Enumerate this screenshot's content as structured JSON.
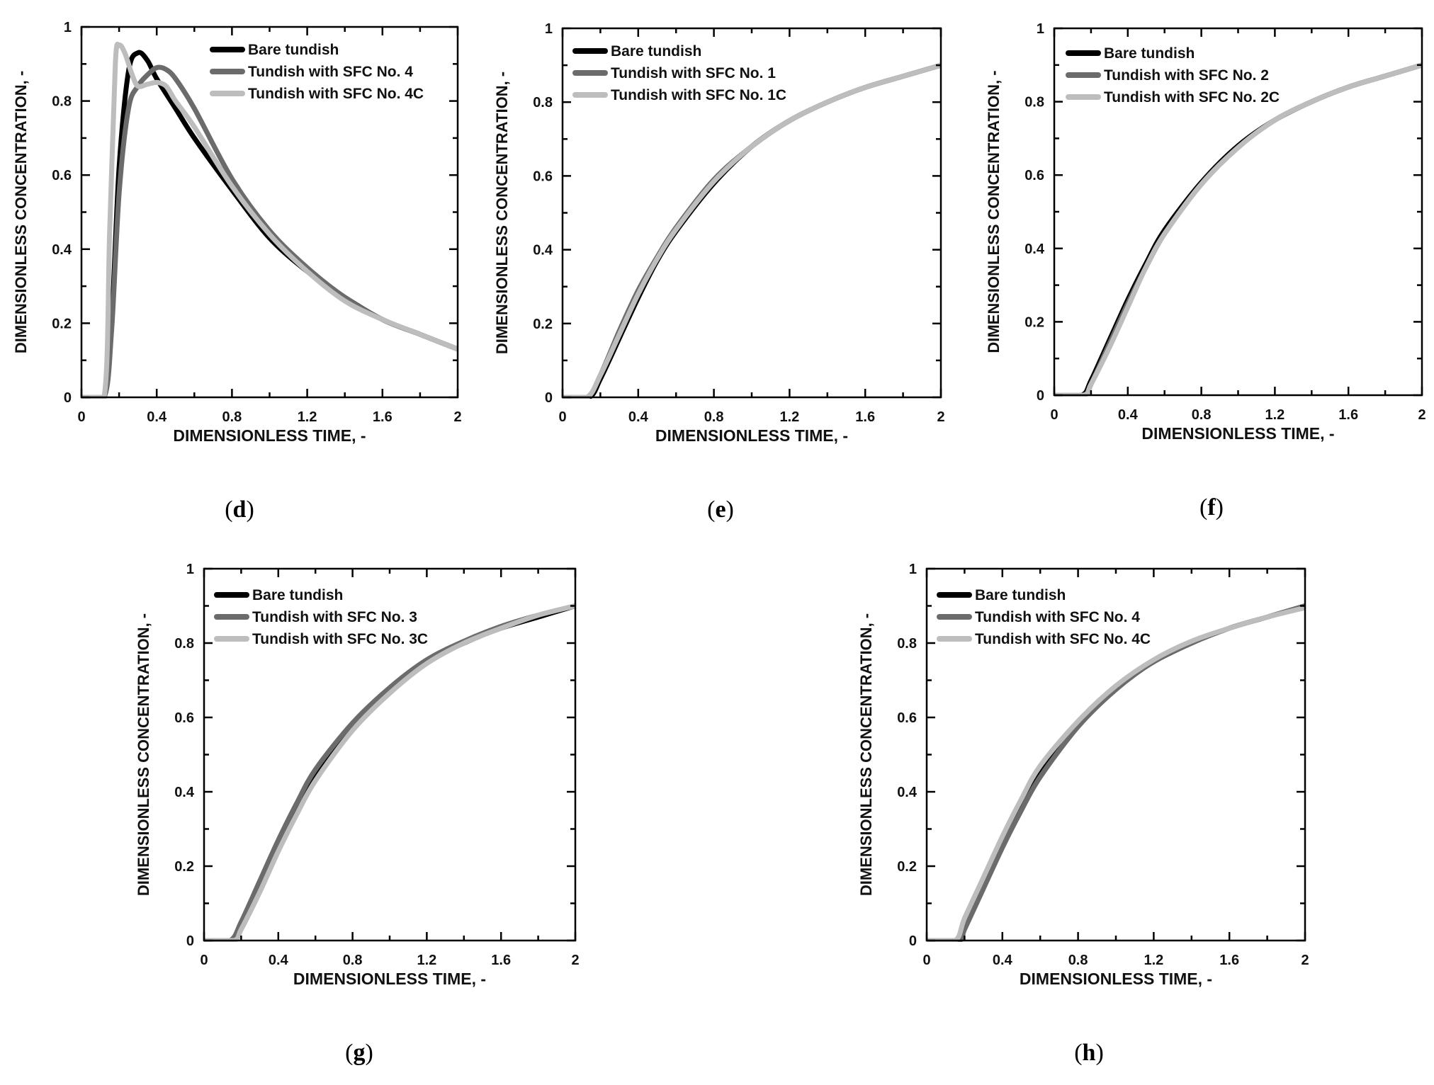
{
  "colors": {
    "bare": "#000000",
    "sfc": "#6b6b6b",
    "sfcC": "#bdbdbd"
  },
  "chart_data": [
    {
      "panel": "(d)",
      "type": "line",
      "xlabel": "DIMENSIONLESS TIME, -",
      "ylabel": "DIMENSIONLESS CONCENTRATION, -",
      "xlim": [
        0,
        2
      ],
      "ylim": [
        0,
        1
      ],
      "xticks": [
        "0",
        "0.4",
        "0.8",
        "1.2",
        "1.6",
        "2"
      ],
      "yticks": [
        "0",
        "0.2",
        "0.4",
        "0.6",
        "0.8",
        "1"
      ],
      "legend_position": "top-right",
      "series": [
        {
          "name": "Bare tundish",
          "x": [
            0,
            0.12,
            0.16,
            0.2,
            0.25,
            0.3,
            0.35,
            0.4,
            0.5,
            0.6,
            0.8,
            1.0,
            1.2,
            1.4,
            1.6,
            1.8,
            2.0
          ],
          "y": [
            0,
            0,
            0.2,
            0.62,
            0.88,
            0.93,
            0.91,
            0.86,
            0.78,
            0.7,
            0.56,
            0.43,
            0.34,
            0.27,
            0.21,
            0.17,
            0.13
          ]
        },
        {
          "name": "Tundish with SFC No. 4",
          "x": [
            0,
            0.12,
            0.16,
            0.2,
            0.25,
            0.3,
            0.35,
            0.4,
            0.45,
            0.5,
            0.6,
            0.8,
            1.0,
            1.2,
            1.4,
            1.6,
            1.8,
            2.0
          ],
          "y": [
            0,
            0,
            0.18,
            0.55,
            0.78,
            0.84,
            0.87,
            0.89,
            0.885,
            0.86,
            0.78,
            0.59,
            0.45,
            0.35,
            0.27,
            0.21,
            0.17,
            0.13
          ]
        },
        {
          "name": "Tundish with SFC No. 4C",
          "x": [
            0,
            0.12,
            0.15,
            0.18,
            0.2,
            0.23,
            0.27,
            0.3,
            0.35,
            0.4,
            0.45,
            0.5,
            0.6,
            0.8,
            1.0,
            1.2,
            1.4,
            1.6,
            1.8,
            2.0
          ],
          "y": [
            0,
            0,
            0.45,
            0.9,
            0.95,
            0.93,
            0.87,
            0.84,
            0.845,
            0.85,
            0.84,
            0.8,
            0.73,
            0.57,
            0.44,
            0.34,
            0.26,
            0.21,
            0.17,
            0.13
          ]
        }
      ],
      "legend": [
        "Bare tundish",
        "Tundish with SFC No. 4",
        "Tundish with SFC No. 4C"
      ]
    },
    {
      "panel": "(e)",
      "type": "line",
      "xlabel": "DIMENSIONLESS TIME, -",
      "ylabel": "DIMENSIONLESS CONCENTRATION, -",
      "xlim": [
        0,
        2
      ],
      "ylim": [
        0,
        1
      ],
      "xticks": [
        "0",
        "0.4",
        "0.8",
        "1.2",
        "1.6",
        "2"
      ],
      "yticks": [
        "0",
        "0.2",
        "0.4",
        "0.6",
        "0.8",
        "1"
      ],
      "legend_position": "top-left",
      "series": [
        {
          "name": "Bare tundish",
          "x": [
            0,
            0.14,
            0.2,
            0.3,
            0.4,
            0.5,
            0.6,
            0.8,
            1.0,
            1.2,
            1.4,
            1.6,
            1.8,
            2.0
          ],
          "y": [
            0,
            0,
            0.05,
            0.16,
            0.27,
            0.37,
            0.45,
            0.58,
            0.68,
            0.75,
            0.8,
            0.84,
            0.87,
            0.9
          ]
        },
        {
          "name": "Tundish with SFC No. 1",
          "x": [
            0,
            0.13,
            0.2,
            0.3,
            0.4,
            0.5,
            0.6,
            0.8,
            1.0,
            1.2,
            1.4,
            1.6,
            1.8,
            2.0
          ],
          "y": [
            0,
            0,
            0.06,
            0.18,
            0.29,
            0.38,
            0.46,
            0.59,
            0.68,
            0.75,
            0.8,
            0.84,
            0.87,
            0.9
          ]
        },
        {
          "name": "Tundish with SFC No. 1C",
          "x": [
            0,
            0.13,
            0.2,
            0.3,
            0.4,
            0.5,
            0.6,
            0.8,
            1.0,
            1.2,
            1.4,
            1.6,
            1.8,
            2.0
          ],
          "y": [
            0,
            0,
            0.06,
            0.17,
            0.28,
            0.375,
            0.455,
            0.585,
            0.68,
            0.75,
            0.8,
            0.84,
            0.87,
            0.9
          ]
        }
      ],
      "legend": [
        "Bare tundish",
        "Tundish with SFC No. 1",
        "Tundish with SFC No. 1C"
      ]
    },
    {
      "panel": "(f)",
      "type": "line",
      "xlabel": "DIMENSIONLESS TIME, -",
      "ylabel": "DIMENSIONLESS CONCENTRATION, -",
      "xlim": [
        0,
        2
      ],
      "ylim": [
        0,
        1
      ],
      "xticks": [
        "0",
        "0.4",
        "0.8",
        "1.2",
        "1.6",
        "2"
      ],
      "yticks": [
        "0",
        "0.2",
        "0.4",
        "0.6",
        "0.8",
        "1"
      ],
      "legend_position": "top-left",
      "series": [
        {
          "name": "Bare tundish",
          "x": [
            0,
            0.15,
            0.2,
            0.3,
            0.4,
            0.5,
            0.6,
            0.8,
            1.0,
            1.2,
            1.4,
            1.6,
            1.8,
            2.0
          ],
          "y": [
            0,
            0,
            0.04,
            0.15,
            0.26,
            0.36,
            0.45,
            0.58,
            0.68,
            0.75,
            0.8,
            0.84,
            0.87,
            0.9
          ]
        },
        {
          "name": "Tundish with SFC No. 2",
          "x": [
            0,
            0.16,
            0.2,
            0.3,
            0.4,
            0.5,
            0.6,
            0.8,
            1.0,
            1.2,
            1.4,
            1.6,
            1.8,
            2.0
          ],
          "y": [
            0,
            0,
            0.03,
            0.14,
            0.25,
            0.35,
            0.44,
            0.575,
            0.675,
            0.75,
            0.8,
            0.84,
            0.87,
            0.9
          ]
        },
        {
          "name": "Tundish with SFC No. 2C",
          "x": [
            0,
            0.16,
            0.2,
            0.3,
            0.4,
            0.5,
            0.6,
            0.8,
            1.0,
            1.2,
            1.4,
            1.6,
            1.8,
            2.0
          ],
          "y": [
            0,
            0,
            0.03,
            0.13,
            0.24,
            0.35,
            0.44,
            0.575,
            0.675,
            0.75,
            0.8,
            0.84,
            0.87,
            0.9
          ]
        }
      ],
      "legend": [
        "Bare tundish",
        "Tundish with SFC No. 2",
        "Tundish with SFC No. 2C"
      ]
    },
    {
      "panel": "(g)",
      "type": "line",
      "xlabel": "DIMENSIONLESS TIME, -",
      "ylabel": "DIMENSIONLESS CONCENTRATION, -",
      "xlim": [
        0,
        2
      ],
      "ylim": [
        0,
        1
      ],
      "xticks": [
        "0",
        "0.4",
        "0.8",
        "1.2",
        "1.6",
        "2"
      ],
      "yticks": [
        "0",
        "0.2",
        "0.4",
        "0.6",
        "0.8",
        "1"
      ],
      "legend_position": "top-left",
      "series": [
        {
          "name": "Bare tundish",
          "x": [
            0,
            0.15,
            0.2,
            0.3,
            0.4,
            0.5,
            0.6,
            0.8,
            1.0,
            1.2,
            1.4,
            1.6,
            1.8,
            2.0
          ],
          "y": [
            0,
            0,
            0.04,
            0.14,
            0.25,
            0.35,
            0.44,
            0.57,
            0.67,
            0.75,
            0.8,
            0.84,
            0.87,
            0.9
          ]
        },
        {
          "name": "Tundish with SFC No. 3",
          "x": [
            0,
            0.14,
            0.2,
            0.3,
            0.4,
            0.5,
            0.6,
            0.8,
            1.0,
            1.2,
            1.4,
            1.6,
            1.8,
            2.0
          ],
          "y": [
            0,
            0,
            0.05,
            0.16,
            0.27,
            0.37,
            0.46,
            0.585,
            0.68,
            0.755,
            0.805,
            0.845,
            0.875,
            0.9
          ]
        },
        {
          "name": "Tundish with SFC No. 3C",
          "x": [
            0,
            0.16,
            0.2,
            0.3,
            0.4,
            0.5,
            0.6,
            0.8,
            1.0,
            1.2,
            1.4,
            1.6,
            1.8,
            2.0
          ],
          "y": [
            0,
            0,
            0.03,
            0.13,
            0.24,
            0.34,
            0.43,
            0.565,
            0.665,
            0.745,
            0.8,
            0.84,
            0.875,
            0.9
          ]
        }
      ],
      "legend": [
        "Bare tundish",
        "Tundish with SFC No. 3",
        "Tundish with SFC No. 3C"
      ]
    },
    {
      "panel": "(h)",
      "type": "line",
      "xlabel": "DIMENSIONLESS TIME, -",
      "ylabel": "DIMENSIONLESS CONCENTRATION, -",
      "xlim": [
        0,
        2
      ],
      "ylim": [
        0,
        1
      ],
      "xticks": [
        "0",
        "0.4",
        "0.8",
        "1.2",
        "1.6",
        "2"
      ],
      "yticks": [
        "0",
        "0.2",
        "0.4",
        "0.6",
        "0.8",
        "1"
      ],
      "legend_position": "top-left",
      "series": [
        {
          "name": "Bare tundish",
          "x": [
            0,
            0.16,
            0.2,
            0.3,
            0.4,
            0.5,
            0.6,
            0.8,
            1.0,
            1.2,
            1.4,
            1.6,
            1.8,
            2.0
          ],
          "y": [
            0,
            0,
            0.04,
            0.15,
            0.26,
            0.36,
            0.45,
            0.58,
            0.68,
            0.75,
            0.8,
            0.84,
            0.87,
            0.9
          ]
        },
        {
          "name": "Tundish with SFC No. 4",
          "x": [
            0,
            0.17,
            0.2,
            0.3,
            0.4,
            0.5,
            0.6,
            0.8,
            1.0,
            1.2,
            1.4,
            1.6,
            1.8,
            2.0
          ],
          "y": [
            0,
            0,
            0.03,
            0.14,
            0.25,
            0.35,
            0.44,
            0.575,
            0.675,
            0.75,
            0.8,
            0.84,
            0.87,
            0.9
          ]
        },
        {
          "name": "Tundish with SFC No. 4C",
          "x": [
            0,
            0.15,
            0.2,
            0.3,
            0.4,
            0.5,
            0.6,
            0.8,
            1.0,
            1.2,
            1.4,
            1.6,
            1.8,
            2.0
          ],
          "y": [
            0,
            0,
            0.06,
            0.17,
            0.28,
            0.38,
            0.47,
            0.59,
            0.685,
            0.755,
            0.805,
            0.84,
            0.87,
            0.895
          ]
        }
      ],
      "legend": [
        "Bare tundish",
        "Tundish with SFC No. 4",
        "Tundish with SFC No. 4C"
      ]
    }
  ]
}
